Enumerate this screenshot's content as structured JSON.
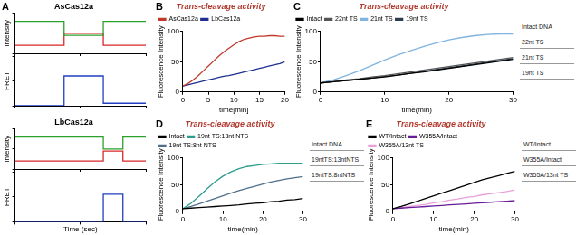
{
  "chart_data": [
    {
      "type": "line",
      "panel": "A",
      "title": "AsCas12a",
      "y_label": "Intensity",
      "tick_labels": false,
      "grid": false,
      "line_style": "step",
      "x": [
        0,
        10,
        20,
        30,
        40,
        50,
        60,
        70,
        80,
        90,
        100,
        110,
        120,
        130,
        140,
        150,
        160,
        170,
        180,
        190,
        200
      ],
      "xlim": [
        0,
        200
      ],
      "xticks": [
        0,
        100,
        200
      ],
      "ylim": [
        0,
        1
      ],
      "yticks": [
        0,
        0.5,
        1
      ],
      "series": [
        {
          "color": "#2ca02c",
          "values": [
            0.8,
            0.8,
            0.8,
            0.8,
            0.8,
            0.8,
            0.8,
            0.8,
            0.45,
            0.45,
            0.45,
            0.45,
            0.45,
            0.45,
            0.8,
            0.8,
            0.8,
            0.8,
            0.8,
            0.8,
            0.8
          ]
        },
        {
          "color": "#d62728",
          "values": [
            0.2,
            0.2,
            0.2,
            0.2,
            0.2,
            0.2,
            0.2,
            0.2,
            0.5,
            0.5,
            0.5,
            0.5,
            0.5,
            0.5,
            0.2,
            0.2,
            0.2,
            0.2,
            0.2,
            0.2,
            0.2
          ]
        }
      ]
    },
    {
      "type": "line",
      "y_label": "FRET",
      "tick_labels": false,
      "grid": false,
      "line_style": "step",
      "x": [
        0,
        10,
        20,
        30,
        40,
        50,
        60,
        70,
        80,
        90,
        100,
        110,
        120,
        130,
        140,
        150,
        160,
        170,
        180,
        190,
        200
      ],
      "xlim": [
        0,
        200
      ],
      "xticks": [
        0,
        100,
        200
      ],
      "ylim": [
        0,
        1
      ],
      "yticks": [
        0,
        0.5,
        1
      ],
      "series": [
        {
          "color": "#1f3fbf",
          "values": [
            0,
            0,
            0,
            0,
            0,
            0,
            0,
            0,
            0.6,
            0.6,
            0.6,
            0.6,
            0.6,
            0.6,
            0.05,
            0.05,
            0.05,
            0.05,
            0.05,
            0.05,
            0.05
          ]
        }
      ]
    },
    {
      "type": "line",
      "title": "LbCas12a",
      "y_label": "Intensity",
      "tick_labels": false,
      "grid": false,
      "line_style": "step",
      "x": [
        0,
        10,
        20,
        30,
        40,
        50,
        60,
        70,
        80,
        90,
        100,
        110,
        120,
        130,
        140,
        150,
        160,
        170,
        180,
        190,
        200
      ],
      "xlim": [
        0,
        200
      ],
      "xticks": [
        0,
        100,
        200
      ],
      "ylim": [
        0,
        1
      ],
      "yticks": [
        0,
        0.5,
        1
      ],
      "series": [
        {
          "color": "#2ca02c",
          "values": [
            0.8,
            0.8,
            0.8,
            0.8,
            0.8,
            0.8,
            0.8,
            0.8,
            0.8,
            0.8,
            0.8,
            0.8,
            0.8,
            0.8,
            0.5,
            0.5,
            0.5,
            0.8,
            0.8,
            0.8,
            0.8
          ]
        },
        {
          "color": "#d62728",
          "values": [
            0.2,
            0.2,
            0.2,
            0.2,
            0.2,
            0.2,
            0.2,
            0.2,
            0.2,
            0.2,
            0.2,
            0.2,
            0.2,
            0.2,
            0.45,
            0.45,
            0.45,
            0.2,
            0.2,
            0.2,
            0.2
          ]
        }
      ]
    },
    {
      "type": "line",
      "y_label": "FRET",
      "x_label": "Time (sec)",
      "tick_labels": false,
      "grid": false,
      "line_style": "step",
      "x": [
        0,
        10,
        20,
        30,
        40,
        50,
        60,
        70,
        80,
        90,
        100,
        110,
        120,
        130,
        140,
        150,
        160,
        170,
        180,
        190,
        200
      ],
      "xlim": [
        0,
        200
      ],
      "xticks": [
        0,
        100,
        200
      ],
      "ylim": [
        0,
        1
      ],
      "yticks": [
        0,
        0.5,
        1
      ],
      "series": [
        {
          "color": "#1f3fbf",
          "values": [
            0,
            0,
            0,
            0,
            0,
            0,
            0,
            0,
            0,
            0,
            0,
            0,
            0,
            0,
            0.55,
            0.55,
            0.55,
            0,
            0,
            0,
            0
          ]
        }
      ]
    },
    {
      "type": "line",
      "panel": "B",
      "title": "Trans-cleavage activity",
      "x_label": "time[min]",
      "y_label": "Fluorescence Intensity",
      "grid": false,
      "legend": "top",
      "x": [
        0,
        1,
        2,
        3,
        4,
        5,
        6,
        7,
        8,
        9,
        10,
        11,
        12,
        13,
        14,
        15,
        16,
        17,
        18,
        19,
        20
      ],
      "xlim": [
        0,
        20
      ],
      "xticks": [
        0,
        5,
        10,
        15,
        20
      ],
      "ylim": [
        0,
        100
      ],
      "yticks": [
        0,
        50,
        100
      ],
      "series": [
        {
          "name": "AsCas12a",
          "color": "#c0392b",
          "values": [
            10,
            14,
            20,
            27,
            35,
            43,
            51,
            59,
            66,
            72,
            78,
            83,
            87,
            89,
            91,
            92,
            92,
            93,
            93,
            92,
            92
          ]
        },
        {
          "name": "LbCas12a",
          "color": "#1f2f8f",
          "values": [
            10,
            12,
            14,
            16,
            18,
            20,
            22,
            24,
            26,
            27,
            29,
            31,
            33,
            35,
            37,
            39,
            41,
            43,
            45,
            47,
            50
          ]
        }
      ]
    },
    {
      "type": "line",
      "panel": "C",
      "title": "Trans-cleavage activity",
      "x_label": "time(min)",
      "y_label": "Fluorescence Intensity",
      "grid": false,
      "legend": "top",
      "annotations": [
        "Intact DNA",
        "22nt TS",
        "21nt TS",
        "19nt TS"
      ],
      "x": [
        0,
        2,
        4,
        6,
        8,
        10,
        12,
        14,
        16,
        18,
        20,
        22,
        24,
        26,
        28,
        30
      ],
      "xlim": [
        0,
        30
      ],
      "xticks": [
        0,
        10,
        20,
        30
      ],
      "ylim": [
        0,
        100
      ],
      "yticks": [
        0,
        50,
        100
      ],
      "series": [
        {
          "name": "Intact",
          "color": "#000000",
          "values": [
            15,
            17,
            19,
            21,
            23,
            25,
            28,
            31,
            33,
            36,
            39,
            42,
            45,
            48,
            51,
            54
          ]
        },
        {
          "name": "22nt TS",
          "color": "#555555",
          "values": [
            15,
            17,
            20,
            22,
            25,
            27,
            30,
            33,
            36,
            39,
            42,
            45,
            48,
            51,
            54,
            57
          ]
        },
        {
          "name": "21nt TS",
          "color": "#7fb3e0",
          "values": [
            15,
            20,
            27,
            35,
            44,
            53,
            61,
            68,
            75,
            81,
            86,
            90,
            93,
            95,
            96,
            96
          ]
        },
        {
          "name": "19nt TS",
          "color": "#2c3e50",
          "values": [
            15,
            17,
            19,
            21,
            23,
            26,
            28,
            31,
            34,
            37,
            40,
            43,
            46,
            49,
            52,
            55
          ]
        }
      ]
    },
    {
      "type": "line",
      "panel": "D",
      "title": "Trans-cleavage activity",
      "x_label": "time(min)",
      "y_label": "Fluorescence Intensity",
      "grid": false,
      "legend": "top",
      "annotations": [
        "Intact DNA",
        "19ntTS:13ntNTS",
        "19ntTS:8ntNTS"
      ],
      "x": [
        0,
        2,
        4,
        6,
        8,
        10,
        12,
        14,
        16,
        18,
        20,
        22,
        24,
        26,
        28,
        30
      ],
      "xlim": [
        0,
        30
      ],
      "xticks": [
        0,
        10,
        20,
        30
      ],
      "ylim": [
        0,
        100
      ],
      "yticks": [
        0,
        50,
        100
      ],
      "series": [
        {
          "name": "Intact",
          "color": "#000000",
          "values": [
            5,
            6,
            7,
            8,
            9,
            10,
            11,
            12,
            14,
            15,
            16,
            18,
            19,
            21,
            22,
            24
          ]
        },
        {
          "name": "19nt TS:13nt NTS",
          "color": "#2a9d8f",
          "values": [
            5,
            15,
            28,
            42,
            55,
            66,
            74,
            80,
            84,
            86,
            88,
            89,
            90,
            90,
            90,
            90
          ]
        },
        {
          "name": "19nt TS:8nt NTS",
          "color": "#4f6f8a",
          "values": [
            5,
            9,
            14,
            19,
            24,
            29,
            34,
            39,
            43,
            47,
            51,
            55,
            58,
            61,
            63,
            65
          ]
        }
      ]
    },
    {
      "type": "line",
      "panel": "E",
      "title": "Trans-cleavage activity",
      "x_label": "time(min)",
      "y_label": "Fluorescence Intensity",
      "grid": false,
      "legend": "top",
      "annotations": [
        "WT/Intact",
        "W355A/Intact",
        "W355A/13nt TS"
      ],
      "x": [
        0,
        2,
        4,
        6,
        8,
        10,
        12,
        14,
        16,
        18,
        20,
        22,
        24,
        26,
        28,
        30
      ],
      "xlim": [
        0,
        30
      ],
      "xticks": [
        0,
        10,
        20,
        30
      ],
      "ylim": [
        0,
        100
      ],
      "yticks": [
        0,
        50,
        100
      ],
      "series": [
        {
          "name": "WT/Intact",
          "color": "#000000",
          "values": [
            5,
            9,
            14,
            19,
            24,
            29,
            34,
            39,
            44,
            49,
            54,
            59,
            63,
            67,
            71,
            75
          ]
        },
        {
          "name": "W355A/Intact",
          "color": "#6a1b9a",
          "values": [
            5,
            6,
            7,
            8,
            9,
            10,
            11,
            12,
            13,
            14,
            15,
            16,
            17,
            18,
            19,
            20
          ]
        },
        {
          "name": "W355A/13nt TS",
          "color": "#e8a0d8",
          "values": [
            5,
            7,
            9,
            11,
            13,
            16,
            18,
            21,
            23,
            26,
            28,
            31,
            33,
            35,
            37,
            40
          ]
        }
      ]
    }
  ]
}
